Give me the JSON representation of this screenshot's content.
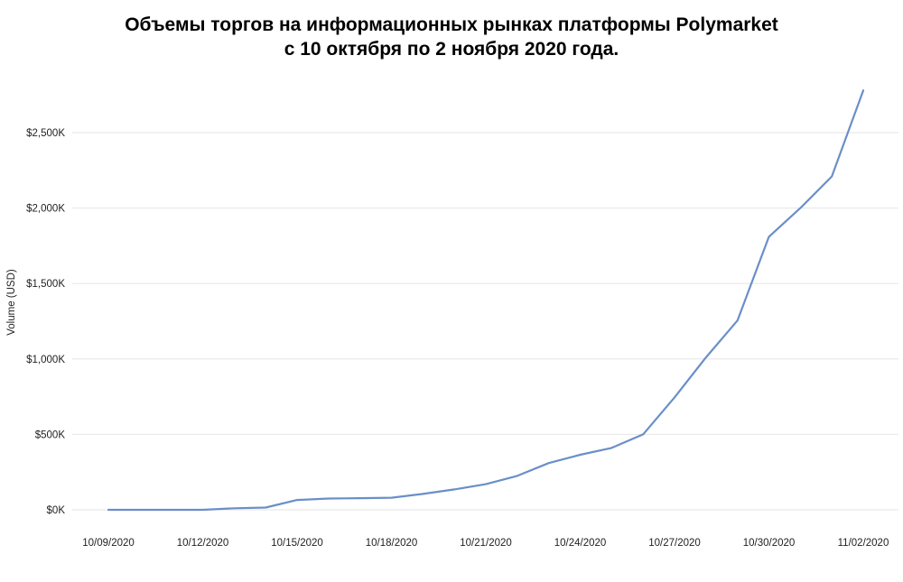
{
  "chart_data": {
    "type": "line",
    "title_line1": "Объемы торгов на информационных рынках платформы Polymarket",
    "title_line2": "с 10 октября по 2 ноября 2020 года.",
    "xlabel": "",
    "ylabel": "Volume (USD)",
    "ylim": [
      0,
      2800
    ],
    "y_unit": "thousand USD",
    "y_ticks": [
      0,
      500,
      1000,
      1500,
      2000,
      2500
    ],
    "y_tick_labels": [
      "$0K",
      "$500K",
      "$1,000K",
      "$1,500K",
      "$2,000K",
      "$2,500K"
    ],
    "x_tick_labels": [
      "10/09/2020",
      "10/12/2020",
      "10/15/2020",
      "10/18/2020",
      "10/21/2020",
      "10/24/2020",
      "10/27/2020",
      "10/30/2020",
      "11/02/2020"
    ],
    "x_tick_dates": [
      "2020-10-09",
      "2020-10-12",
      "2020-10-15",
      "2020-10-18",
      "2020-10-21",
      "2020-10-24",
      "2020-10-27",
      "2020-10-30",
      "2020-11-02"
    ],
    "grid": true,
    "line_color": "#6a8fc8",
    "series": [
      {
        "x": [
          "2020-10-09",
          "2020-10-10",
          "2020-10-11",
          "2020-10-12",
          "2020-10-13",
          "2020-10-14",
          "2020-10-15",
          "2020-10-16",
          "2020-10-17",
          "2020-10-18",
          "2020-10-19",
          "2020-10-20",
          "2020-10-21",
          "2020-10-22",
          "2020-10-23",
          "2020-10-24",
          "2020-10-25",
          "2020-10-26",
          "2020-10-27",
          "2020-10-28",
          "2020-10-29",
          "2020-10-30",
          "2020-10-31",
          "2020-11-01",
          "2020-11-02"
        ],
        "values": [
          0,
          0,
          0,
          0,
          10,
          15,
          65,
          75,
          77,
          80,
          105,
          135,
          170,
          225,
          310,
          365,
          410,
          500,
          745,
          1010,
          1255,
          1810,
          2000,
          2210,
          2780
        ]
      }
    ]
  }
}
